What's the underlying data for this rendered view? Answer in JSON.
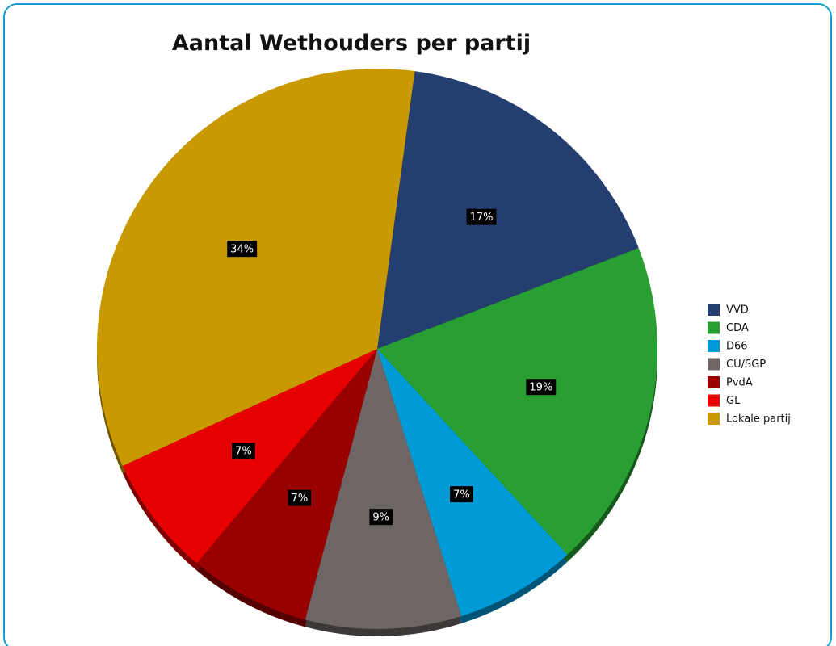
{
  "chart_data": {
    "type": "pie",
    "title": "Aantal Wethouders per partij",
    "categories": [
      "VVD",
      "CDA",
      "D66",
      "CU/SGP",
      "PvdA",
      "GL",
      "Lokale partij"
    ],
    "values": [
      17,
      19,
      7,
      9,
      7,
      7,
      34
    ],
    "value_labels": [
      "17%",
      "19%",
      "7%",
      "9%",
      "7%",
      "7%",
      "34%"
    ],
    "colors": [
      "#243e6f",
      "#289e33",
      "#009ad6",
      "#6d6664",
      "#990000",
      "#e60000",
      "#c89900"
    ],
    "legend": "right"
  }
}
